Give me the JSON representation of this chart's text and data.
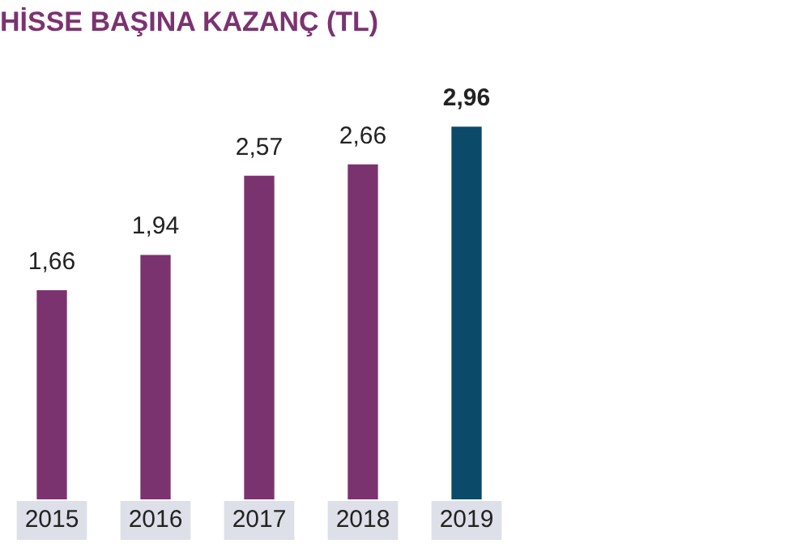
{
  "chart_data": {
    "type": "bar",
    "title": "HİSSE BAŞINA KAZANÇ (TL)",
    "categories": [
      "2015",
      "2016",
      "2017",
      "2018",
      "2019"
    ],
    "values": [
      1.66,
      1.94,
      2.57,
      2.66,
      2.96
    ],
    "colors": [
      "#7b3370",
      "#7b3370",
      "#7b3370",
      "#7b3370",
      "#0b4a68"
    ],
    "value_labels": [
      "1,66",
      "1,94",
      "2,57",
      "2,66",
      "2,96"
    ],
    "grid": false,
    "legend": false
  }
}
